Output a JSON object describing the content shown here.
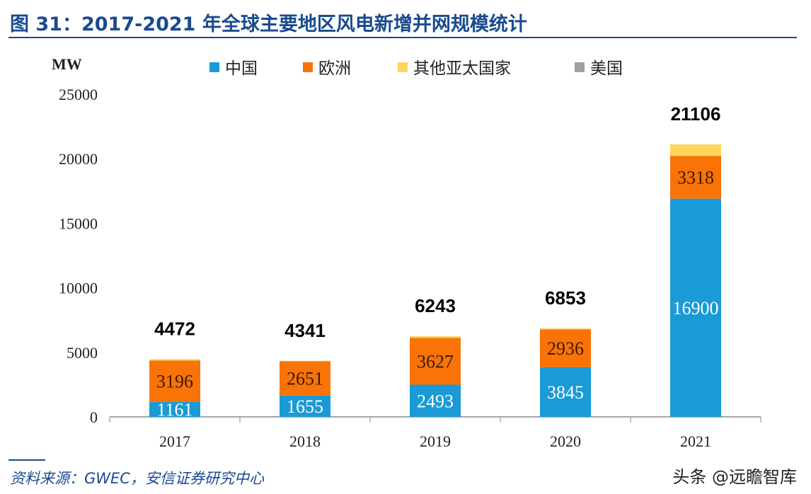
{
  "title": "图 31：2017-2021 年全球主要地区风电新增并网规模统计",
  "source": "资料来源：GWEC，安信证券研究中心",
  "watermark": "头条 @远瞻智库",
  "chart_data": {
    "type": "bar",
    "stacked": true,
    "ylabel": "MW",
    "ylim": [
      0,
      25000
    ],
    "yticks": [
      "0",
      "5000",
      "10000",
      "15000",
      "20000",
      "25000"
    ],
    "categories": [
      "2017",
      "2018",
      "2019",
      "2020",
      "2021"
    ],
    "legend_position": "top",
    "series": [
      {
        "name": "中国",
        "color": "#1a9ad6",
        "values": [
          1161,
          1655,
          2493,
          3845,
          16900
        ],
        "labels": [
          "1161",
          "1655",
          "2493",
          "3845",
          "16900"
        ]
      },
      {
        "name": "欧洲",
        "color": "#f97306",
        "values": [
          3196,
          2651,
          3627,
          2936,
          3318
        ],
        "labels": [
          "3196",
          "2651",
          "3627",
          "2936",
          "3318"
        ]
      },
      {
        "name": "其他亚太国家",
        "color": "#fdd55c",
        "values": [
          115,
          35,
          123,
          72,
          888
        ]
      },
      {
        "name": "美国",
        "color": "#a0a0a0",
        "values": [
          0,
          0,
          0,
          0,
          0
        ]
      }
    ],
    "totals": [
      "4472",
      "4341",
      "6243",
      "6853",
      "21106"
    ],
    "grid": false
  }
}
